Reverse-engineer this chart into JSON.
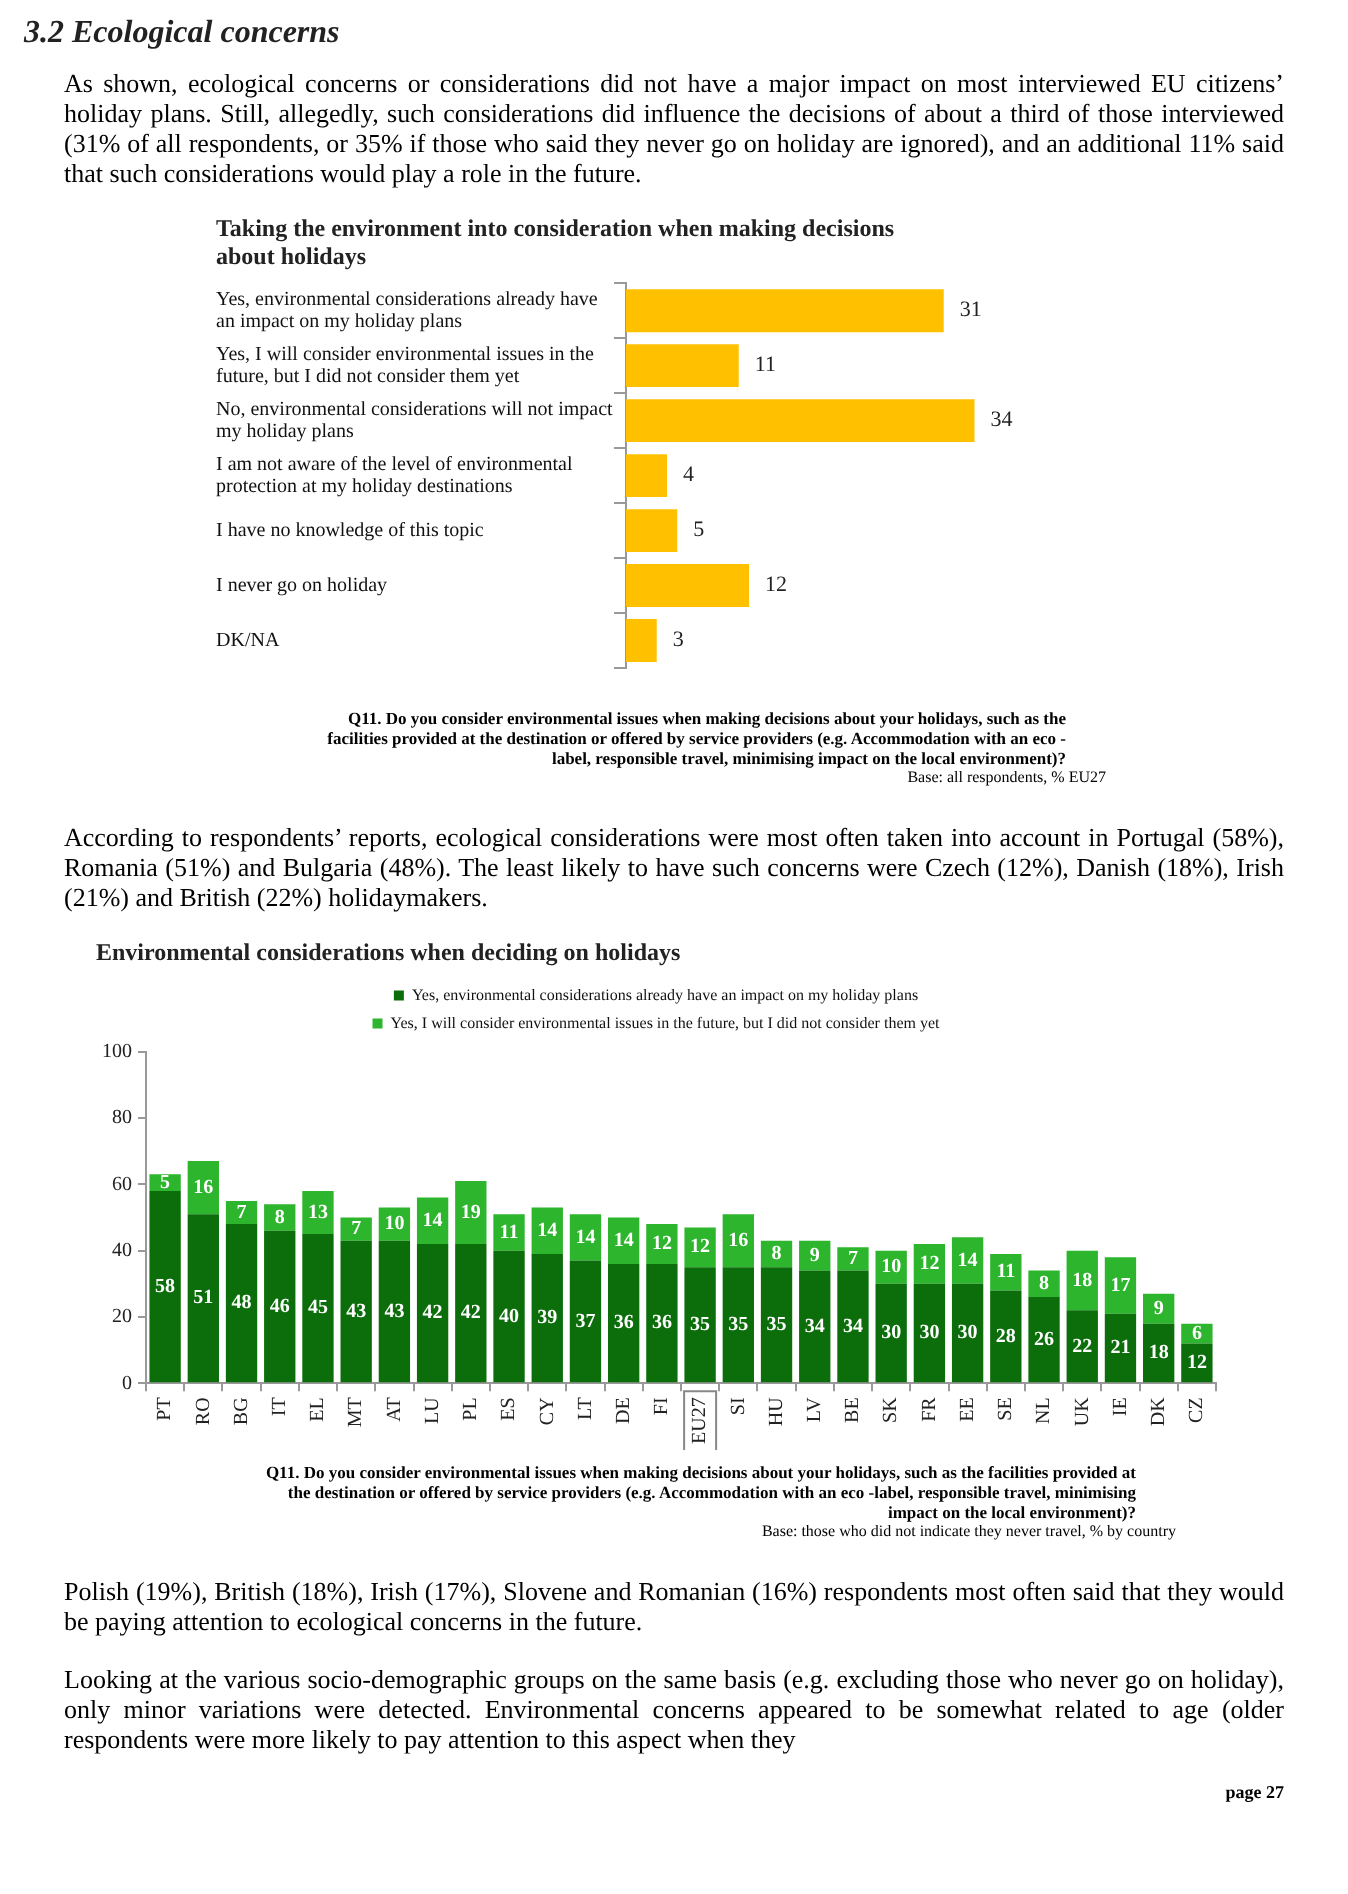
{
  "chart_data": [
    {
      "type": "bar",
      "orientation": "horizontal",
      "title": "Taking the environment into consideration when making decisions about holidays",
      "categories": [
        "Yes, environmental considerations already have an impact on my holiday plans",
        "Yes, I will consider environmental issues in the future, but I did not consider them yet",
        "No, environmental considerations will not impact my holiday plans",
        "I am not aware of the level of environmental protection at my holiday destinations",
        "I have no knowledge of this topic",
        "I never go on holiday",
        "DK/NA"
      ],
      "values": [
        31,
        11,
        34,
        4,
        5,
        12,
        3
      ],
      "color": "#ffc000",
      "data_labels": true,
      "tick_labels": "y",
      "annotations": [
        "3.2 Ecological concerns",
        "As shown, ecological concerns or considerations did not have a major impact on most interviewed EU citizens’ holiday plans. Still, allegedly, such considerations did influence the decisions of about a third of those interviewed (31% of all respondents, or 35% if those who said they never go on holiday are ignored), and an additional 11% said that such considerations would play a role in the future.",
        "Q11. Do you consider environmental issues when making decisions about your holidays, such as the facilities provided at the destination or offered by service providers (e.g. Accommodation with an eco -label, responsible travel, minimising impact on the local environment)?",
        "Base: all respondents, % EU27"
      ]
    },
    {
      "type": "bar",
      "stacked": true,
      "title": "Environmental considerations when deciding on holidays",
      "categories": [
        "PT",
        "RO",
        "BG",
        "IT",
        "EL",
        "MT",
        "AT",
        "LU",
        "PL",
        "ES",
        "CY",
        "LT",
        "DE",
        "FI",
        "EU27",
        "SI",
        "HU",
        "LV",
        "BE",
        "SK",
        "FR",
        "EE",
        "SE",
        "NL",
        "UK",
        "IE",
        "DK",
        "CZ"
      ],
      "series": [
        {
          "name": "Yes, environmental considerations already have an impact on my holiday plans",
          "color": "#0b6e0b",
          "values": [
            58,
            51,
            48,
            46,
            45,
            43,
            43,
            42,
            42,
            40,
            39,
            37,
            36,
            36,
            35,
            35,
            35,
            34,
            34,
            30,
            30,
            30,
            28,
            26,
            22,
            21,
            18,
            12
          ]
        },
        {
          "name": "Yes, I will consider environmental issues in the future, but I did not consider them yet",
          "color": "#2db52d",
          "values": [
            5,
            16,
            7,
            8,
            13,
            7,
            10,
            14,
            19,
            11,
            14,
            14,
            14,
            12,
            12,
            16,
            8,
            9,
            7,
            10,
            12,
            14,
            11,
            8,
            18,
            17,
            9,
            6
          ]
        }
      ],
      "ylim": [
        0,
        100
      ],
      "yticks": [
        0,
        20,
        40,
        60,
        80,
        100
      ],
      "legend": "top",
      "data_labels": true,
      "annotations": [
        "According to respondents’ reports, ecological considerations were most often taken into account in Portugal (58%), Romania (51%) and Bulgaria (48%). The least likely to have such concerns were Czech (12%), Danish (18%), Irish (21%) and British (22%) holidaymakers.",
        "Q11. Do you consider environmental issues when making decisions about your holidays, such as the facilities provided at the destination or offered by service providers (e.g. Accommodation with an eco -label, responsible travel, minimising impact on the local environment)?",
        "Base: those who did not indicate they never travel, % by country",
        "Polish (19%), British (18%), Irish (17%), Slovene and Romanian (16%) respondents most often said that they would be paying attention to ecological concerns in the future.",
        "Looking at the various socio-demographic groups on the same basis (e.g. excluding those who never go on holiday), only minor variations were detected. Environmental concerns appeared to be somewhat related to age (older respondents were more likely to pay attention to this aspect when they",
        "page 27"
      ]
    }
  ]
}
